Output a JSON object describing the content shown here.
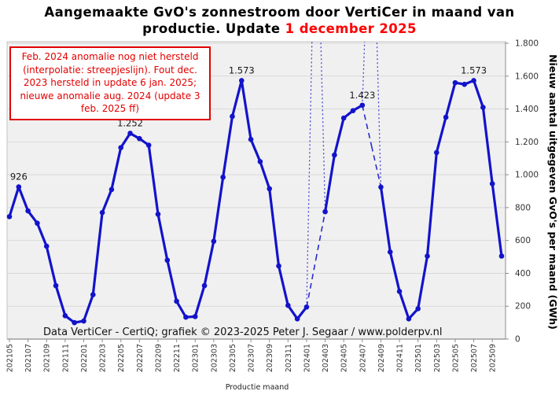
{
  "title": {
    "line1": "Aangemaakte GvO's zonnestroom door VertiCer in maand van",
    "line2_prefix": "productie. Update ",
    "line2_highlight": "1 december 2025"
  },
  "annotation": {
    "lines": [
      "Feb. 2024 anomalie nog niet hersteld",
      "(interpolatie: streepjeslijn). Fout dec.",
      "2023 hersteld in update 6 jan. 2025;",
      "nieuwe anomalie aug. 2024 (update 3",
      "feb. 2025 ff)"
    ]
  },
  "footer": "Data VertiCer - CertiQ; grafiek © 2023-2025  Peter J. Segaar / www.polderpv.nl",
  "chart_data": {
    "type": "line",
    "title": "Aangemaakte GvO's zonnestroom door VertiCer in maand van productie. Update 1 december 2025",
    "xlabel": "Productie maand",
    "ylabel": "Nieuw aantal uitgegeven GvO's per maand (GWh)",
    "ylim": [
      0,
      1800
    ],
    "ytick_step": 200,
    "ytick_labels": [
      "0",
      "200",
      "400",
      "600",
      "800",
      "1.000",
      "1.200",
      "1.400",
      "1.600",
      "1.800"
    ],
    "xtick_every": 2,
    "grid": true,
    "legend": "none",
    "x": [
      "202105",
      "202106",
      "202107",
      "202108",
      "202109",
      "202110",
      "202111",
      "202112",
      "202201",
      "202202",
      "202203",
      "202204",
      "202205",
      "202206",
      "202207",
      "202208",
      "202209",
      "202210",
      "202211",
      "202212",
      "202301",
      "202302",
      "202303",
      "202304",
      "202305",
      "202306",
      "202307",
      "202308",
      "202309",
      "202310",
      "202311",
      "202312",
      "202401",
      "202402",
      "202403",
      "202404",
      "202405",
      "202406",
      "202407",
      "202408",
      "202409",
      "202410",
      "202411",
      "202412",
      "202501",
      "202502",
      "202503",
      "202504",
      "202505",
      "202506",
      "202507",
      "202508",
      "202509",
      "202510"
    ],
    "values": [
      745,
      926,
      780,
      705,
      565,
      325,
      142,
      100,
      110,
      270,
      770,
      910,
      1165,
      1252,
      1220,
      1180,
      760,
      480,
      230,
      133,
      137,
      325,
      595,
      985,
      1355,
      1573,
      1215,
      1080,
      915,
      445,
      205,
      123,
      195,
      485,
      775,
      1120,
      1345,
      1390,
      1423,
      1175,
      925,
      530,
      290,
      123,
      185,
      505,
      1135,
      1350,
      1560,
      1550,
      1573,
      1410,
      945,
      505
    ],
    "interpolated_months": [
      "202402",
      "202408"
    ],
    "anomalies": [
      {
        "month": "202402",
        "display": "actual value off-scale; dotted spike above axis, dashed interpolation"
      },
      {
        "month": "202408",
        "display": "actual value off-scale; dotted spike above axis, dashed interpolation"
      }
    ],
    "labeled_points": [
      {
        "month": "202106",
        "label": "926"
      },
      {
        "month": "202206",
        "label": "1.252"
      },
      {
        "month": "202306",
        "label": "1.573"
      },
      {
        "month": "202407",
        "label": "1.423"
      },
      {
        "month": "202507",
        "label": "1.573"
      }
    ],
    "colors": {
      "line": "#1313cb",
      "dashed": "#2a2ad0",
      "dotted": "#4646d2",
      "plot_bg": "#f0f0f0",
      "grid": "#d9d9d9",
      "border": "#c3c3c3",
      "axis": "#8c8c8c",
      "tick_text": "#333333",
      "label_text": "#1a1a1a",
      "annotation_red": "#e30000",
      "title_date_red": "#ff0000"
    }
  }
}
